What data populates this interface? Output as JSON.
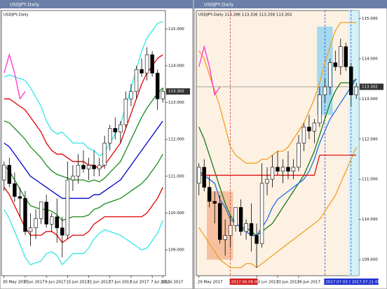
{
  "chart_data": [
    {
      "type": "candlestick",
      "title": "USDJPY,Daily",
      "subtitle": "USDJPY,Daily",
      "background": "#ffffff",
      "ylim": [
        108.3,
        115.5
      ],
      "yticks": [
        {
          "value": 109,
          "label": "109.000"
        },
        {
          "value": 110,
          "label": "110.000"
        },
        {
          "value": 111,
          "label": "111.000"
        },
        {
          "value": 112,
          "label": "112.000"
        },
        {
          "value": 113,
          "label": "113.000"
        },
        {
          "value": 114,
          "label": "114.000"
        },
        {
          "value": 115,
          "label": "115.000"
        }
      ],
      "categories": [
        "30 May 2017",
        null,
        null,
        null,
        "5 Jun 2017",
        null,
        null,
        null,
        "9 Jun 2017",
        null,
        null,
        null,
        "15 Jun 2017",
        null,
        null,
        null,
        "21 Jun 2017",
        null,
        null,
        null,
        "27 Jun 2017",
        null,
        null,
        null,
        "3 Jul 2017",
        null,
        null,
        null,
        "7 Jul 2017",
        null,
        "13 Jul 2017"
      ],
      "open": [
        110.9,
        111.3,
        110.8,
        110.45,
        110.4,
        109.5,
        109.6,
        109.85,
        110.3,
        109.7,
        109.9,
        109.6,
        109.4,
        110.9,
        111.0,
        111.3,
        111.2,
        111.3,
        111.2,
        111.3,
        111.9,
        112.3,
        112.2,
        112.4,
        113.1,
        113.3,
        113.9,
        113.8,
        114.3,
        113.8,
        113.1
      ],
      "high": [
        111.4,
        111.5,
        111.1,
        110.7,
        110.6,
        110.0,
        110.1,
        110.3,
        110.5,
        110.0,
        110.4,
        109.9,
        111.4,
        111.3,
        111.6,
        111.7,
        111.5,
        111.7,
        111.5,
        112.1,
        112.4,
        112.6,
        112.5,
        113.3,
        113.5,
        114.0,
        114.2,
        114.5,
        114.4,
        113.9,
        113.4
      ],
      "low": [
        110.6,
        110.7,
        110.3,
        109.9,
        109.4,
        109.1,
        109.3,
        109.7,
        109.6,
        109.5,
        109.2,
        108.8,
        109.3,
        110.6,
        110.8,
        111.1,
        110.9,
        111.0,
        111.0,
        111.2,
        111.7,
        112.0,
        111.9,
        112.3,
        112.9,
        113.1,
        113.7,
        113.6,
        113.7,
        112.8,
        113.0
      ],
      "close": [
        111.3,
        110.8,
        110.45,
        110.4,
        109.5,
        109.6,
        109.85,
        110.3,
        109.7,
        109.9,
        109.6,
        109.4,
        110.9,
        111.0,
        111.3,
        111.2,
        111.3,
        111.2,
        111.3,
        111.9,
        112.3,
        112.2,
        112.4,
        113.1,
        113.3,
        113.9,
        113.8,
        114.3,
        113.8,
        113.1,
        113.3
      ],
      "last_price": 113.302,
      "price_line": false,
      "series": [
        {
          "color": "#0000d0",
          "values": [
            111.9,
            111.8,
            111.6,
            111.4,
            111.2,
            111.0,
            110.9,
            110.8,
            110.7,
            110.6,
            110.5,
            110.4,
            110.4,
            110.4,
            110.4,
            110.4,
            110.4,
            110.5,
            110.5,
            110.6,
            110.7,
            110.8,
            110.9,
            111.1,
            111.3,
            111.5,
            111.7,
            111.9,
            112.1,
            112.3,
            112.5
          ]
        },
        {
          "color": "#1a8a1a",
          "values": [
            112.5,
            112.45,
            112.3,
            112.15,
            112.0,
            111.8,
            111.65,
            111.5,
            111.3,
            111.15,
            111.05,
            111.0,
            110.95,
            110.9,
            110.9,
            110.9,
            110.85,
            110.9,
            110.85,
            110.95,
            111.1,
            111.25,
            111.4,
            111.7,
            112.0,
            112.3,
            112.6,
            112.85,
            113.05,
            113.25,
            113.4
          ]
        },
        {
          "color": "#1a8a1a",
          "values": [
            111.3,
            111.15,
            110.9,
            110.65,
            110.4,
            110.2,
            110.15,
            110.1,
            110.1,
            110.05,
            109.95,
            109.8,
            109.85,
            109.9,
            109.9,
            109.9,
            109.95,
            110.1,
            110.15,
            110.25,
            110.3,
            110.35,
            110.4,
            110.5,
            110.6,
            110.7,
            110.8,
            110.95,
            111.15,
            111.35,
            111.6
          ]
        },
        {
          "color": "#e00000",
          "values": [
            113.1,
            113.1,
            113.0,
            112.9,
            112.8,
            112.6,
            112.4,
            112.2,
            111.9,
            111.7,
            111.6,
            111.6,
            111.5,
            111.4,
            111.4,
            111.4,
            111.3,
            111.3,
            111.2,
            111.3,
            111.5,
            111.7,
            111.9,
            112.3,
            112.7,
            113.1,
            113.5,
            113.8,
            114.0,
            114.2,
            114.3
          ]
        },
        {
          "color": "#e00000",
          "values": [
            110.7,
            110.5,
            110.2,
            109.9,
            109.6,
            109.4,
            109.4,
            109.4,
            109.5,
            109.5,
            109.4,
            109.2,
            109.3,
            109.4,
            109.4,
            109.4,
            109.5,
            109.7,
            109.8,
            109.9,
            109.9,
            109.9,
            109.9,
            109.9,
            109.9,
            109.9,
            109.9,
            110.0,
            110.2,
            110.4,
            110.7
          ]
        },
        {
          "color": "#33e6e6",
          "values": [
            113.7,
            113.75,
            113.7,
            113.65,
            113.6,
            113.4,
            113.15,
            112.9,
            112.5,
            112.25,
            112.15,
            112.2,
            112.05,
            111.9,
            111.9,
            111.9,
            111.75,
            111.7,
            111.55,
            111.65,
            111.9,
            112.15,
            112.4,
            112.9,
            113.4,
            113.9,
            114.4,
            114.75,
            114.95,
            115.15,
            115.2
          ]
        },
        {
          "color": "#33e6e6",
          "values": [
            110.1,
            109.85,
            109.5,
            109.15,
            108.8,
            108.6,
            108.65,
            108.7,
            108.9,
            108.95,
            108.85,
            108.6,
            108.75,
            108.9,
            108.9,
            108.9,
            109.05,
            109.3,
            109.45,
            109.55,
            109.5,
            109.45,
            109.4,
            109.3,
            109.2,
            109.1,
            109.0,
            109.05,
            109.25,
            109.45,
            109.8
          ]
        },
        {
          "color": "#ff33cc",
          "values": [
            113.8,
            114.3,
            113.8,
            113.1,
            113.3,
            null,
            null,
            null,
            null,
            null,
            null,
            null,
            null,
            null,
            null,
            null,
            null,
            null,
            null,
            null,
            null,
            null,
            null,
            null,
            null,
            null,
            null,
            null,
            null,
            null,
            null
          ]
        }
      ]
    },
    {
      "type": "candlestick",
      "title": "USDJPY,Daily",
      "subtitle": "USDJPY,Daily 113.286 113.336 113.258 113.302",
      "background": "#fcf1e3",
      "ylim": [
        108.6,
        115.2
      ],
      "yticks": [
        {
          "value": 109,
          "label": "109.000"
        },
        {
          "value": 110,
          "label": "110.000"
        },
        {
          "value": 111,
          "label": "111.000"
        },
        {
          "value": 112,
          "label": "112.000"
        },
        {
          "value": 113,
          "label": "113.000"
        },
        {
          "value": 114,
          "label": "114.000"
        },
        {
          "value": 115,
          "label": "115.000"
        }
      ],
      "categories": [
        "29 May 2017",
        null,
        null,
        null,
        null,
        null,
        null,
        null,
        null,
        null,
        null,
        "14 Jun 2017",
        null,
        null,
        null,
        "20 Jun 2017",
        null,
        null,
        null,
        "26 Jun 2017",
        null,
        null,
        null,
        null,
        null,
        null,
        null,
        null,
        null,
        null,
        null
      ],
      "x_markers": [
        {
          "at": 6,
          "label": "2017.06.06 00:00",
          "color": "#d02020"
        },
        {
          "at": 24,
          "label": "2017.07.03 00:00",
          "color": "#2030d0"
        },
        {
          "at": 29,
          "label": "2017.07.11 00:00",
          "color": "#2030d0"
        }
      ],
      "shades": [
        {
          "from": 2,
          "to": 6,
          "low": 109.0,
          "high": 110.7,
          "color": "#f3b58f"
        },
        {
          "from": 23,
          "to": 25,
          "low": 112.6,
          "high": 114.8,
          "color": "#8fd3f0"
        },
        {
          "from": 29,
          "to": 30,
          "color": "#c8f2fb"
        }
      ],
      "open": [
        110.9,
        111.3,
        110.8,
        110.45,
        110.4,
        109.5,
        109.6,
        109.85,
        110.3,
        109.7,
        109.9,
        109.6,
        109.4,
        110.9,
        111.0,
        111.3,
        111.2,
        111.3,
        111.2,
        111.3,
        111.9,
        112.3,
        112.2,
        112.4,
        113.1,
        113.3,
        113.9,
        113.8,
        114.3,
        113.8,
        113.1
      ],
      "high": [
        111.4,
        111.5,
        111.1,
        110.7,
        110.6,
        110.0,
        110.1,
        110.3,
        110.5,
        110.0,
        110.4,
        109.9,
        111.4,
        111.3,
        111.6,
        111.7,
        111.5,
        111.7,
        111.5,
        112.1,
        112.4,
        112.6,
        112.5,
        113.3,
        113.5,
        114.0,
        114.2,
        114.5,
        114.4,
        113.9,
        113.4
      ],
      "low": [
        110.6,
        110.7,
        110.3,
        109.9,
        109.4,
        109.1,
        109.3,
        109.7,
        109.6,
        109.5,
        109.2,
        108.8,
        109.3,
        110.6,
        110.8,
        111.1,
        110.9,
        111.0,
        111.0,
        111.2,
        111.7,
        112.0,
        111.9,
        112.3,
        112.9,
        113.1,
        113.7,
        113.6,
        113.7,
        112.8,
        113.0
      ],
      "close": [
        111.3,
        110.8,
        110.45,
        110.4,
        109.5,
        109.6,
        109.85,
        110.3,
        109.7,
        109.9,
        109.6,
        109.4,
        110.9,
        111.0,
        111.3,
        111.2,
        111.3,
        111.2,
        111.3,
        111.9,
        112.3,
        112.2,
        112.4,
        113.1,
        113.3,
        113.9,
        113.8,
        114.3,
        113.8,
        113.1,
        113.3
      ],
      "last_price": 113.302,
      "price_line": true,
      "series": [
        {
          "color": "#f0a020",
          "values": [
            114.2,
            114.0,
            113.6,
            113.2,
            112.8,
            112.3,
            111.8,
            111.6,
            111.5,
            111.4,
            111.4,
            111.4,
            111.5,
            111.5,
            111.6,
            111.7,
            111.7,
            111.8,
            112.0,
            112.2,
            112.4,
            112.7,
            113.0,
            113.4,
            113.9,
            114.3,
            114.7,
            114.9,
            114.9,
            114.9,
            114.9
          ]
        },
        {
          "color": "#f0a020",
          "values": [
            109.8,
            109.6,
            109.4,
            109.2,
            109.0,
            108.9,
            108.8,
            108.8,
            108.8,
            108.9,
            108.9,
            108.8,
            108.9,
            109.0,
            109.1,
            109.2,
            109.3,
            109.4,
            109.5,
            109.6,
            109.7,
            109.8,
            109.9,
            110.0,
            110.2,
            110.4,
            110.6,
            110.9,
            111.2,
            111.5,
            111.8
          ]
        },
        {
          "color": "#1a7a1a",
          "values": [
            112.3,
            112.0,
            111.6,
            111.2,
            110.8,
            110.4,
            110.1,
            109.9,
            109.8,
            109.8,
            109.7,
            109.6,
            109.7,
            109.8,
            109.9,
            110.1,
            110.3,
            110.5,
            110.7,
            110.9,
            111.1,
            111.4,
            111.7,
            112.1,
            112.5,
            112.9,
            113.2,
            113.4,
            113.4,
            113.4,
            113.5
          ]
        },
        {
          "color": "#1e6ee6",
          "values": [
            111.2,
            111.1,
            111.0,
            110.9,
            110.5,
            110.3,
            110.0,
            109.9,
            109.8,
            109.7,
            109.6,
            109.6,
            109.8,
            110.0,
            110.3,
            110.5,
            110.6,
            110.7,
            110.8,
            110.9,
            111.0,
            111.2,
            111.5,
            111.9,
            112.2,
            112.5,
            112.7,
            112.9,
            113.1,
            113.3,
            113.5
          ]
        },
        {
          "color": "#e01010",
          "values": [
            111.1,
            111.1,
            111.1,
            111.1,
            111.1,
            111.1,
            111.1,
            111.1,
            111.1,
            111.1,
            111.1,
            111.1,
            111.1,
            111.1,
            111.1,
            111.1,
            111.1,
            111.1,
            111.1,
            111.1,
            111.1,
            111.1,
            111.1,
            111.6,
            111.6,
            111.6,
            111.6,
            111.6,
            111.6,
            111.6,
            111.6
          ]
        },
        {
          "color": "#ff33cc",
          "values": [
            113.8,
            114.3,
            113.8,
            113.1,
            113.3,
            null,
            null,
            null,
            null,
            null,
            null,
            null,
            null,
            null,
            null,
            null,
            null,
            null,
            null,
            null,
            null,
            null,
            null,
            null,
            null,
            null,
            null,
            null,
            null,
            null,
            null
          ]
        }
      ]
    }
  ]
}
